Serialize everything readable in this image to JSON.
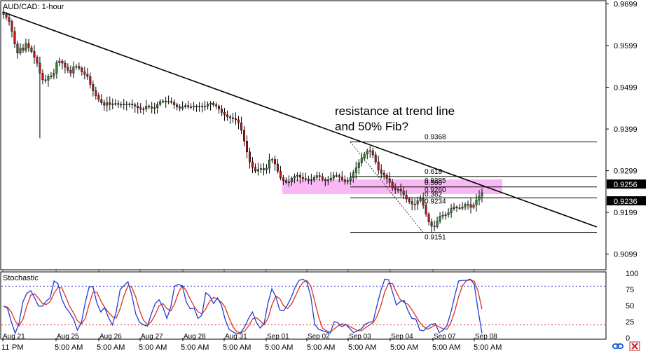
{
  "window": {
    "title": "AUD/CAD: 1-hour"
  },
  "indicator": {
    "title": "Stochastic"
  },
  "annotation": {
    "text_line1": "resistance at trend line",
    "text_line2": "and 50% Fib?"
  },
  "colors": {
    "candle_up": "#2e8b2e",
    "candle_down": "#c01818",
    "wick": "#000000",
    "trendline": "#000000",
    "fib_line": "#000000",
    "highlight_zone": "#f5a0f0",
    "stoch_k": "#1f3fd6",
    "stoch_d": "#e03020",
    "level_80": "#3030d0",
    "level_20": "#d03030",
    "price_label_bg": "#000000",
    "price_label_text": "#ffffff"
  },
  "chart_data": {
    "type": "candlestick",
    "symbol": "AUD/CAD",
    "timeframe": "1-hour",
    "y_ticks": [
      "0.9699",
      "0.9599",
      "0.9499",
      "0.9399",
      "0.9299",
      "0.9199",
      "0.9099"
    ],
    "ylim": [
      0.9063,
      0.9705
    ],
    "current_price_labels": [
      "0.9256",
      "0.9236"
    ],
    "x_date_labels": [
      "Aug 21",
      "Aug 25",
      "Aug 26",
      "Aug 27",
      "Aug 28",
      "Aug 31",
      "Sep 01",
      "Sep 02",
      "Sep 03",
      "Sep 04",
      "Sep 07",
      "Sep 08"
    ],
    "x_time_labels": [
      "11",
      "PM",
      "5:00 AM",
      "5:00 AM",
      "5:00 AM",
      "5:00 AM",
      "5:00 AM",
      "5:00 AM",
      "5:00 AM",
      "5:00 AM",
      "5:00 AM",
      "5:00 AM",
      "5:00 AM"
    ],
    "swing_high": 0.9368,
    "swing_low": 0.9151,
    "fib_levels": [
      {
        "label": "0.9368",
        "value": 0.9368
      },
      {
        "label": "0.618",
        "value": 0.9285
      },
      {
        "label": "0.9285",
        "value": 0.9285
      },
      {
        "label": "0.500",
        "value": 0.926
      },
      {
        "label": "0.9260",
        "value": 0.926
      },
      {
        "label": "0.382",
        "value": 0.9234
      },
      {
        "label": "0.9234",
        "value": 0.9234
      },
      {
        "label": "0.9151",
        "value": 0.9151
      }
    ],
    "resistance_zone": [
      0.9243,
      0.9278
    ],
    "trendline": {
      "start": {
        "x": "Aug 21",
        "y": 0.9679
      },
      "end": {
        "x": "Sep 08",
        "y": 0.9164
      }
    },
    "close_series": [
      0.9674,
      0.9667,
      0.9657,
      0.9633,
      0.9603,
      0.9581,
      0.9593,
      0.9588,
      0.9604,
      0.9594,
      0.9585,
      0.9571,
      0.9557,
      0.9533,
      0.9517,
      0.9516,
      0.9525,
      0.9526,
      0.9533,
      0.9558,
      0.9562,
      0.9557,
      0.9547,
      0.954,
      0.9533,
      0.9548,
      0.9549,
      0.9545,
      0.9536,
      0.953,
      0.9525,
      0.9506,
      0.9491,
      0.9479,
      0.947,
      0.9462,
      0.9456,
      0.9462,
      0.9458,
      0.9459,
      0.946,
      0.9458,
      0.9458,
      0.9459,
      0.9459,
      0.9459,
      0.9457,
      0.9454,
      0.945,
      0.9447,
      0.9447,
      0.9454,
      0.9452,
      0.9449,
      0.945,
      0.9458,
      0.9465,
      0.9466,
      0.9464,
      0.9465,
      0.9463,
      0.9457,
      0.9452,
      0.9449,
      0.9452,
      0.9455,
      0.9452,
      0.9452,
      0.9454,
      0.9453,
      0.9454,
      0.9454,
      0.9454,
      0.9458,
      0.9461,
      0.9457,
      0.9454,
      0.9447,
      0.9439,
      0.9433,
      0.9428,
      0.9426,
      0.9424,
      0.9421,
      0.9414,
      0.9396,
      0.937,
      0.9344,
      0.932,
      0.9307,
      0.9298,
      0.9302,
      0.9304,
      0.9301,
      0.9305,
      0.9325,
      0.9326,
      0.9315,
      0.9298,
      0.9282,
      0.9275,
      0.9271,
      0.9272,
      0.9281,
      0.9286,
      0.9288,
      0.9283,
      0.928,
      0.9279,
      0.9276,
      0.9277,
      0.9283,
      0.9287,
      0.9285,
      0.9278,
      0.9275,
      0.9277,
      0.9281,
      0.9287,
      0.9287,
      0.9284,
      0.9277,
      0.9273,
      0.9275,
      0.9282,
      0.9294,
      0.9306,
      0.9318,
      0.9329,
      0.9339,
      0.9346,
      0.9347,
      0.9337,
      0.932,
      0.9301,
      0.9293,
      0.9288,
      0.928,
      0.9271,
      0.9258,
      0.9254,
      0.9254,
      0.925,
      0.9241,
      0.9231,
      0.9225,
      0.9219,
      0.9219,
      0.9227,
      0.9232,
      0.9216,
      0.9195,
      0.9176,
      0.9166,
      0.9165,
      0.9178,
      0.919,
      0.9192,
      0.9193,
      0.9198,
      0.9208,
      0.9212,
      0.921,
      0.9209,
      0.9212,
      0.9218,
      0.9218,
      0.9211,
      0.9217,
      0.9229,
      0.9238,
      0.9246
    ],
    "stochastic": {
      "levels": [
        80,
        20
      ],
      "y_ticks": [
        "100",
        "75",
        "50",
        "25",
        "0"
      ],
      "ylim": [
        0,
        100
      ],
      "k_series": [
        49,
        46,
        25,
        7,
        23,
        56,
        69,
        73,
        62,
        49,
        49,
        57,
        62,
        88,
        84,
        60,
        47,
        39,
        29,
        12,
        23,
        54,
        79,
        79,
        54,
        40,
        47,
        31,
        20,
        41,
        75,
        81,
        87,
        66,
        37,
        24,
        20,
        18,
        37,
        53,
        59,
        47,
        30,
        48,
        80,
        83,
        80,
        55,
        45,
        46,
        30,
        35,
        70,
        65,
        53,
        62,
        51,
        28,
        13,
        9,
        6,
        8,
        17,
        30,
        40,
        24,
        15,
        22,
        54,
        76,
        64,
        43,
        42,
        51,
        63,
        79,
        89,
        91,
        86,
        64,
        21,
        13,
        11,
        9,
        7,
        25,
        23,
        17,
        21,
        14,
        8,
        11,
        14,
        21,
        24,
        25,
        50,
        73,
        91,
        90,
        71,
        51,
        56,
        58,
        42,
        30,
        29,
        12,
        11,
        17,
        21,
        22,
        8,
        12,
        19,
        39,
        65,
        88,
        89,
        89,
        91,
        83,
        43,
        7
      ]
    }
  }
}
